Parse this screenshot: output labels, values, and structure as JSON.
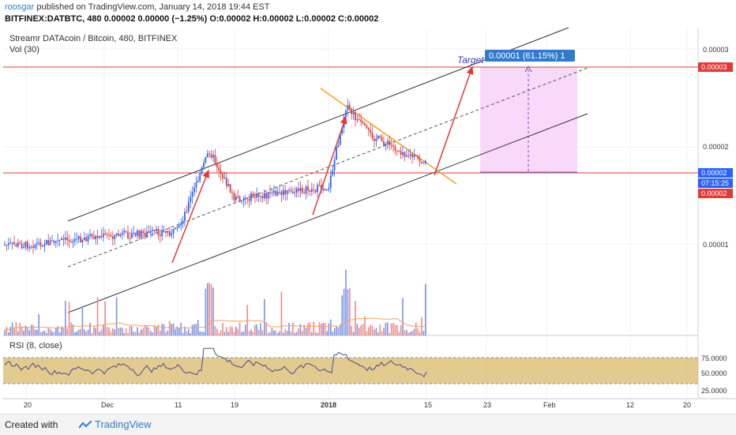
{
  "header": {
    "user": "roosgar",
    "published_text": " published on TradingView.com, January 14, 2018 19:44 EST",
    "ohlc_line": "BITFINEX:DATBTC, 480  0.00002 0.00000 (−1.25%) O:0.00002 H:0.00002 L:0.00002 C:0.00002"
  },
  "pane": {
    "title": "Streamr DATAcoin / Bitcoin, 480, BITFINEX",
    "vol_label": "Vol (30)",
    "rsi_label": "RSI (8, close)"
  },
  "price_axis": {
    "ticks": [
      "0.00003",
      "0.00002",
      "0.00001"
    ],
    "markers": [
      {
        "text": "0.00003",
        "color": "#e53935"
      },
      {
        "text": "0.00002",
        "color": "#2962ff"
      },
      {
        "text": "07:15:25",
        "color": "#2962ff"
      },
      {
        "text": "0.00002",
        "color": "#e53935"
      }
    ]
  },
  "rsi_axis": {
    "ticks": [
      "75.0000",
      "50.0000",
      "25.0000"
    ]
  },
  "time_axis": {
    "ticks": [
      "20",
      "Dec",
      "11",
      "19",
      "2018",
      "15",
      "23",
      "Feb",
      "12",
      "20"
    ]
  },
  "annotations": {
    "target_label": "Target",
    "measure_label": "0.00001 (61.15%) 1"
  },
  "colors": {
    "up": "#2962ff",
    "down": "#e53935",
    "arrows": "#e53935",
    "wedge": "#f0a020",
    "channel": "#333333",
    "target_box": "#f6c8f6",
    "rsi_band": "#d4b060",
    "rsi_line": "#4a4a8a",
    "vol_ma": "#f5a25d"
  },
  "chart_data": {
    "type": "candlestick",
    "symbol": "BITFINEX:DATBTC",
    "interval": "480",
    "last": {
      "open": 2e-05,
      "high": 2e-05,
      "low": 2e-05,
      "close": 2e-05,
      "change": 0.0,
      "change_pct": -1.25
    },
    "price_path_labeled": [
      {
        "x": "20",
        "y": 9.9e-06
      },
      {
        "x": "Dec",
        "y": 1.08e-05
      },
      {
        "x": "11",
        "y": 1.13e-05
      },
      {
        "x": "Dec-13",
        "y": 1.96e-05
      },
      {
        "x": "19",
        "y": 1.46e-05
      },
      {
        "x": "2018",
        "y": 1.58e-05
      },
      {
        "x": "Jan-3",
        "y": 2.41e-05
      },
      {
        "x": "Jan-5",
        "y": 2.12e-05
      },
      {
        "x": "15",
        "y": 1.82e-05
      }
    ],
    "target_projection": {
      "price": 3.1e-05,
      "change": 1e-05,
      "change_pct": 61.15,
      "bars": 1
    },
    "rsi": {
      "period": 8,
      "source": "close",
      "levels": [
        75,
        50,
        25
      ],
      "band": [
        30,
        70
      ]
    },
    "volume_ma_period": 30
  }
}
